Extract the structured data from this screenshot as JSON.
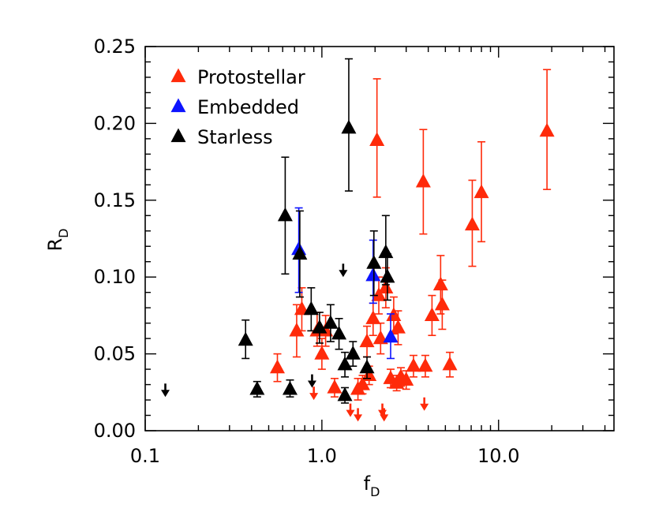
{
  "chart_data": {
    "type": "scatter",
    "title": "",
    "xlabel": {
      "main": "f",
      "sub": "D"
    },
    "ylabel": {
      "main": "R",
      "sub": "D"
    },
    "xscale": "log",
    "xlim": [
      0.1,
      45
    ],
    "ylim": [
      0.0,
      0.25
    ],
    "xticks": [
      {
        "value": 0.1,
        "label": "0.1"
      },
      {
        "value": 1.0,
        "label": "1.0"
      },
      {
        "value": 10.0,
        "label": "10.0"
      }
    ],
    "yticks": [
      {
        "value": 0.0,
        "label": "0.00"
      },
      {
        "value": 0.05,
        "label": "0.05"
      },
      {
        "value": 0.1,
        "label": "0.10"
      },
      {
        "value": 0.15,
        "label": "0.15"
      },
      {
        "value": 0.2,
        "label": "0.20"
      },
      {
        "value": 0.25,
        "label": "0.25"
      }
    ],
    "legend_position": "top-left",
    "series": [
      {
        "name": "Protostellar",
        "color": "#ff2a0a",
        "marker": "triangle",
        "points": [
          {
            "x": 0.56,
            "y": 0.041,
            "lo": 0.032,
            "hi": 0.05
          },
          {
            "x": 0.72,
            "y": 0.065,
            "lo": 0.048,
            "hi": 0.082
          },
          {
            "x": 0.77,
            "y": 0.079,
            "lo": 0.065,
            "hi": 0.093
          },
          {
            "x": 0.94,
            "y": 0.065,
            "lo": 0.055,
            "hi": 0.077
          },
          {
            "x": 1.0,
            "y": 0.05,
            "lo": 0.04,
            "hi": 0.06
          },
          {
            "x": 1.05,
            "y": 0.065,
            "lo": 0.055,
            "hi": 0.075
          },
          {
            "x": 1.18,
            "y": 0.028,
            "lo": 0.022,
            "hi": 0.034
          },
          {
            "x": 1.6,
            "y": 0.027,
            "lo": 0.02,
            "hi": 0.034
          },
          {
            "x": 1.7,
            "y": 0.03,
            "lo": 0.024,
            "hi": 0.036
          },
          {
            "x": 1.8,
            "y": 0.058,
            "lo": 0.048,
            "hi": 0.068
          },
          {
            "x": 1.85,
            "y": 0.036,
            "lo": 0.03,
            "hi": 0.042
          },
          {
            "x": 1.95,
            "y": 0.073,
            "lo": 0.062,
            "hi": 0.083
          },
          {
            "x": 2.05,
            "y": 0.189,
            "lo": 0.152,
            "hi": 0.229
          },
          {
            "x": 2.1,
            "y": 0.088,
            "lo": 0.076,
            "hi": 0.1
          },
          {
            "x": 2.15,
            "y": 0.06,
            "lo": 0.05,
            "hi": 0.07
          },
          {
            "x": 2.3,
            "y": 0.093,
            "lo": 0.08,
            "hi": 0.106
          },
          {
            "x": 2.45,
            "y": 0.034,
            "lo": 0.028,
            "hi": 0.04
          },
          {
            "x": 2.55,
            "y": 0.075,
            "lo": 0.063,
            "hi": 0.087
          },
          {
            "x": 2.65,
            "y": 0.031,
            "lo": 0.026,
            "hi": 0.036
          },
          {
            "x": 2.7,
            "y": 0.067,
            "lo": 0.056,
            "hi": 0.078
          },
          {
            "x": 2.8,
            "y": 0.035,
            "lo": 0.029,
            "hi": 0.041
          },
          {
            "x": 3.0,
            "y": 0.033,
            "lo": 0.027,
            "hi": 0.039
          },
          {
            "x": 3.3,
            "y": 0.042,
            "lo": 0.035,
            "hi": 0.049
          },
          {
            "x": 3.75,
            "y": 0.162,
            "lo": 0.128,
            "hi": 0.196
          },
          {
            "x": 3.85,
            "y": 0.042,
            "lo": 0.035,
            "hi": 0.049
          },
          {
            "x": 4.2,
            "y": 0.075,
            "lo": 0.062,
            "hi": 0.088
          },
          {
            "x": 4.7,
            "y": 0.095,
            "lo": 0.076,
            "hi": 0.114
          },
          {
            "x": 4.8,
            "y": 0.082,
            "lo": 0.066,
            "hi": 0.098
          },
          {
            "x": 5.3,
            "y": 0.043,
            "lo": 0.035,
            "hi": 0.051
          },
          {
            "x": 7.1,
            "y": 0.134,
            "lo": 0.107,
            "hi": 0.163
          },
          {
            "x": 8.0,
            "y": 0.155,
            "lo": 0.123,
            "hi": 0.188
          },
          {
            "x": 18.8,
            "y": 0.195,
            "lo": 0.157,
            "hi": 0.235
          }
        ],
        "upper_limits": [
          {
            "x": 0.9,
            "y": 0.022
          },
          {
            "x": 1.45,
            "y": 0.011
          },
          {
            "x": 1.6,
            "y": 0.008
          },
          {
            "x": 2.2,
            "y": 0.011
          },
          {
            "x": 2.25,
            "y": 0.008
          },
          {
            "x": 3.8,
            "y": 0.015
          }
        ]
      },
      {
        "name": "Embedded",
        "color": "#0d14ff",
        "marker": "triangle",
        "points": [
          {
            "x": 0.74,
            "y": 0.118,
            "lo": 0.09,
            "hi": 0.145
          },
          {
            "x": 1.95,
            "y": 0.101,
            "lo": 0.083,
            "hi": 0.124
          },
          {
            "x": 2.45,
            "y": 0.061,
            "lo": 0.047,
            "hi": 0.076
          }
        ],
        "upper_limits": []
      },
      {
        "name": "Starless",
        "color": "#000000",
        "marker": "triangle",
        "points": [
          {
            "x": 0.37,
            "y": 0.059,
            "lo": 0.047,
            "hi": 0.072
          },
          {
            "x": 0.43,
            "y": 0.027,
            "lo": 0.022,
            "hi": 0.032
          },
          {
            "x": 0.62,
            "y": 0.14,
            "lo": 0.102,
            "hi": 0.178
          },
          {
            "x": 0.66,
            "y": 0.027,
            "lo": 0.022,
            "hi": 0.033
          },
          {
            "x": 0.75,
            "y": 0.115,
            "lo": 0.087,
            "hi": 0.143
          },
          {
            "x": 0.87,
            "y": 0.079,
            "lo": 0.065,
            "hi": 0.093
          },
          {
            "x": 0.97,
            "y": 0.067,
            "lo": 0.057,
            "hi": 0.077
          },
          {
            "x": 1.12,
            "y": 0.07,
            "lo": 0.058,
            "hi": 0.082
          },
          {
            "x": 1.25,
            "y": 0.063,
            "lo": 0.053,
            "hi": 0.073
          },
          {
            "x": 1.35,
            "y": 0.043,
            "lo": 0.035,
            "hi": 0.051
          },
          {
            "x": 1.35,
            "y": 0.023,
            "lo": 0.018,
            "hi": 0.028
          },
          {
            "x": 1.42,
            "y": 0.197,
            "lo": 0.156,
            "hi": 0.242
          },
          {
            "x": 1.5,
            "y": 0.05,
            "lo": 0.042,
            "hi": 0.058
          },
          {
            "x": 1.8,
            "y": 0.041,
            "lo": 0.034,
            "hi": 0.048
          },
          {
            "x": 1.97,
            "y": 0.109,
            "lo": 0.088,
            "hi": 0.13
          },
          {
            "x": 2.3,
            "y": 0.116,
            "lo": 0.095,
            "hi": 0.14
          },
          {
            "x": 2.35,
            "y": 0.1,
            "lo": 0.085,
            "hi": 0.115
          }
        ],
        "upper_limits": [
          {
            "x": 0.13,
            "y": 0.024
          },
          {
            "x": 0.88,
            "y": 0.03
          },
          {
            "x": 1.32,
            "y": 0.102
          }
        ]
      }
    ]
  }
}
